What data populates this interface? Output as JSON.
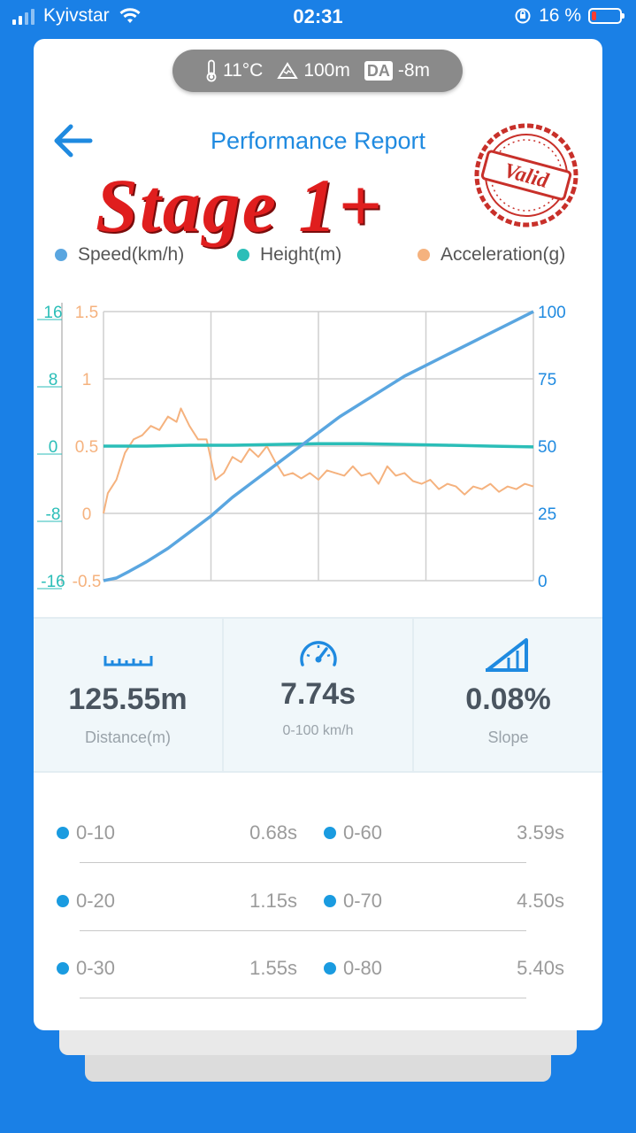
{
  "status_bar": {
    "carrier": "Kyivstar",
    "time": "02:31",
    "battery": "16 %"
  },
  "weather": {
    "temperature": "11°C",
    "altitude": "100m",
    "da_label": "DA",
    "density_altitude": "-8m"
  },
  "header": {
    "title": "Performance Report",
    "overlay": "Stage 1+",
    "stamp": "Valid"
  },
  "colors": {
    "speed": "#5aa6e0",
    "height": "#2bbeb8",
    "acceleration": "#f5b27e",
    "accent": "#1f8ae0",
    "stage": "#e01e1e"
  },
  "chart_data": {
    "type": "line",
    "legend": [
      "Speed(km/h)",
      "Height(m)",
      "Acceleration(g)"
    ],
    "axes": {
      "height_ticks": [
        "16",
        "8",
        "0",
        "-8",
        "-16"
      ],
      "height_range": [
        -16,
        16
      ],
      "acceleration_ticks": [
        "1.5",
        "1",
        "0.5",
        "0",
        "-0.5"
      ],
      "acceleration_range": [
        -0.5,
        1.5
      ],
      "speed_ticks": [
        "100",
        "75",
        "50",
        "25",
        "0"
      ],
      "speed_range": [
        0,
        100
      ],
      "grid": true
    },
    "series": [
      {
        "name": "Speed(km/h)",
        "axis": "right",
        "x": [
          0,
          0.03,
          0.06,
          0.1,
          0.15,
          0.2,
          0.25,
          0.3,
          0.35,
          0.4,
          0.45,
          0.5,
          0.55,
          0.6,
          0.65,
          0.7,
          0.75,
          0.8,
          0.85,
          0.9,
          0.95,
          1.0
        ],
        "values": [
          0,
          1,
          3.5,
          7,
          12,
          18,
          24,
          31,
          37,
          43,
          49,
          55,
          61,
          66,
          71,
          76,
          80,
          84,
          88,
          92,
          96,
          100
        ]
      },
      {
        "name": "Height(m)",
        "axis": "left",
        "x": [
          0,
          0.1,
          0.2,
          0.3,
          0.4,
          0.5,
          0.6,
          0.7,
          0.8,
          0.9,
          1.0
        ],
        "values": [
          0,
          0,
          0.1,
          0.1,
          0.2,
          0.3,
          0.3,
          0.2,
          0.1,
          0,
          -0.1
        ]
      },
      {
        "name": "Acceleration(g)",
        "axis": "left2",
        "x": [
          0,
          0.01,
          0.03,
          0.05,
          0.07,
          0.09,
          0.11,
          0.13,
          0.15,
          0.17,
          0.18,
          0.2,
          0.22,
          0.24,
          0.25,
          0.26,
          0.28,
          0.3,
          0.32,
          0.34,
          0.36,
          0.38,
          0.4,
          0.42,
          0.44,
          0.46,
          0.48,
          0.5,
          0.52,
          0.54,
          0.56,
          0.58,
          0.6,
          0.62,
          0.64,
          0.66,
          0.68,
          0.7,
          0.72,
          0.74,
          0.76,
          0.78,
          0.8,
          0.82,
          0.84,
          0.86,
          0.88,
          0.9,
          0.92,
          0.94,
          0.96,
          0.98,
          1.0
        ],
        "values": [
          0.0,
          0.15,
          0.25,
          0.45,
          0.55,
          0.58,
          0.65,
          0.62,
          0.72,
          0.68,
          0.78,
          0.65,
          0.55,
          0.55,
          0.4,
          0.25,
          0.3,
          0.42,
          0.38,
          0.48,
          0.42,
          0.5,
          0.38,
          0.28,
          0.3,
          0.26,
          0.3,
          0.25,
          0.32,
          0.3,
          0.28,
          0.35,
          0.28,
          0.3,
          0.22,
          0.35,
          0.28,
          0.3,
          0.24,
          0.22,
          0.25,
          0.18,
          0.22,
          0.2,
          0.14,
          0.2,
          0.18,
          0.22,
          0.16,
          0.2,
          0.18,
          0.22,
          0.2
        ]
      }
    ]
  },
  "stats": [
    {
      "icon": "ruler-icon",
      "value": "125.55m",
      "label": "Distance(m)"
    },
    {
      "icon": "speedometer-icon",
      "value": "7.74s",
      "label": "0-100 km/h"
    },
    {
      "icon": "slope-icon",
      "value": "0.08%",
      "label": "Slope"
    }
  ],
  "splits": [
    {
      "left_label": "0-10",
      "left_time": "0.68s",
      "right_label": "0-60",
      "right_time": "3.59s"
    },
    {
      "left_label": "0-20",
      "left_time": "1.15s",
      "right_label": "0-70",
      "right_time": "4.50s"
    },
    {
      "left_label": "0-30",
      "left_time": "1.55s",
      "right_label": "0-80",
      "right_time": "5.40s"
    }
  ]
}
